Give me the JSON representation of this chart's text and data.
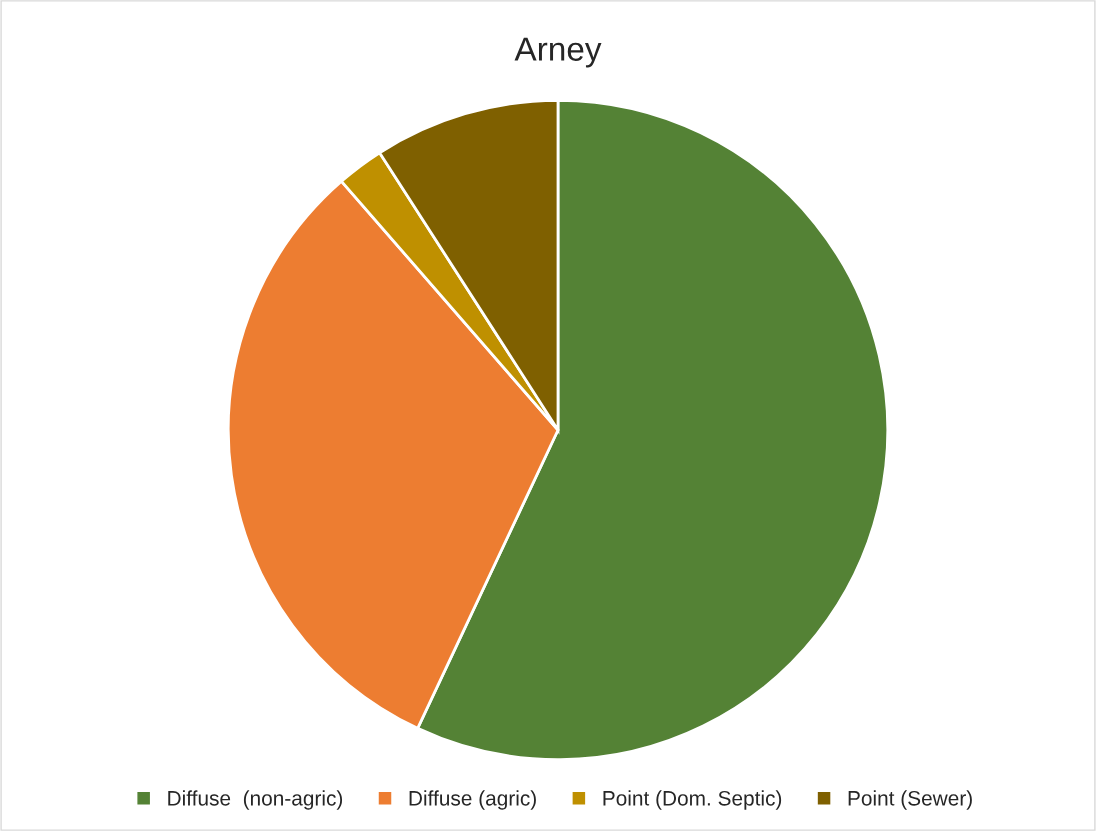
{
  "chart_data": {
    "type": "pie",
    "title": "Arney",
    "categories": [
      "Diffuse  (non-agric)",
      "Diffuse (agric)",
      "Point (Dom. Septic)",
      "Point (Sewer)"
    ],
    "values": [
      57.0,
      31.6,
      2.3,
      9.1
    ],
    "colors": [
      "#548235",
      "#ed7d31",
      "#bf9000",
      "#7f6000"
    ],
    "legend": "bottom"
  }
}
